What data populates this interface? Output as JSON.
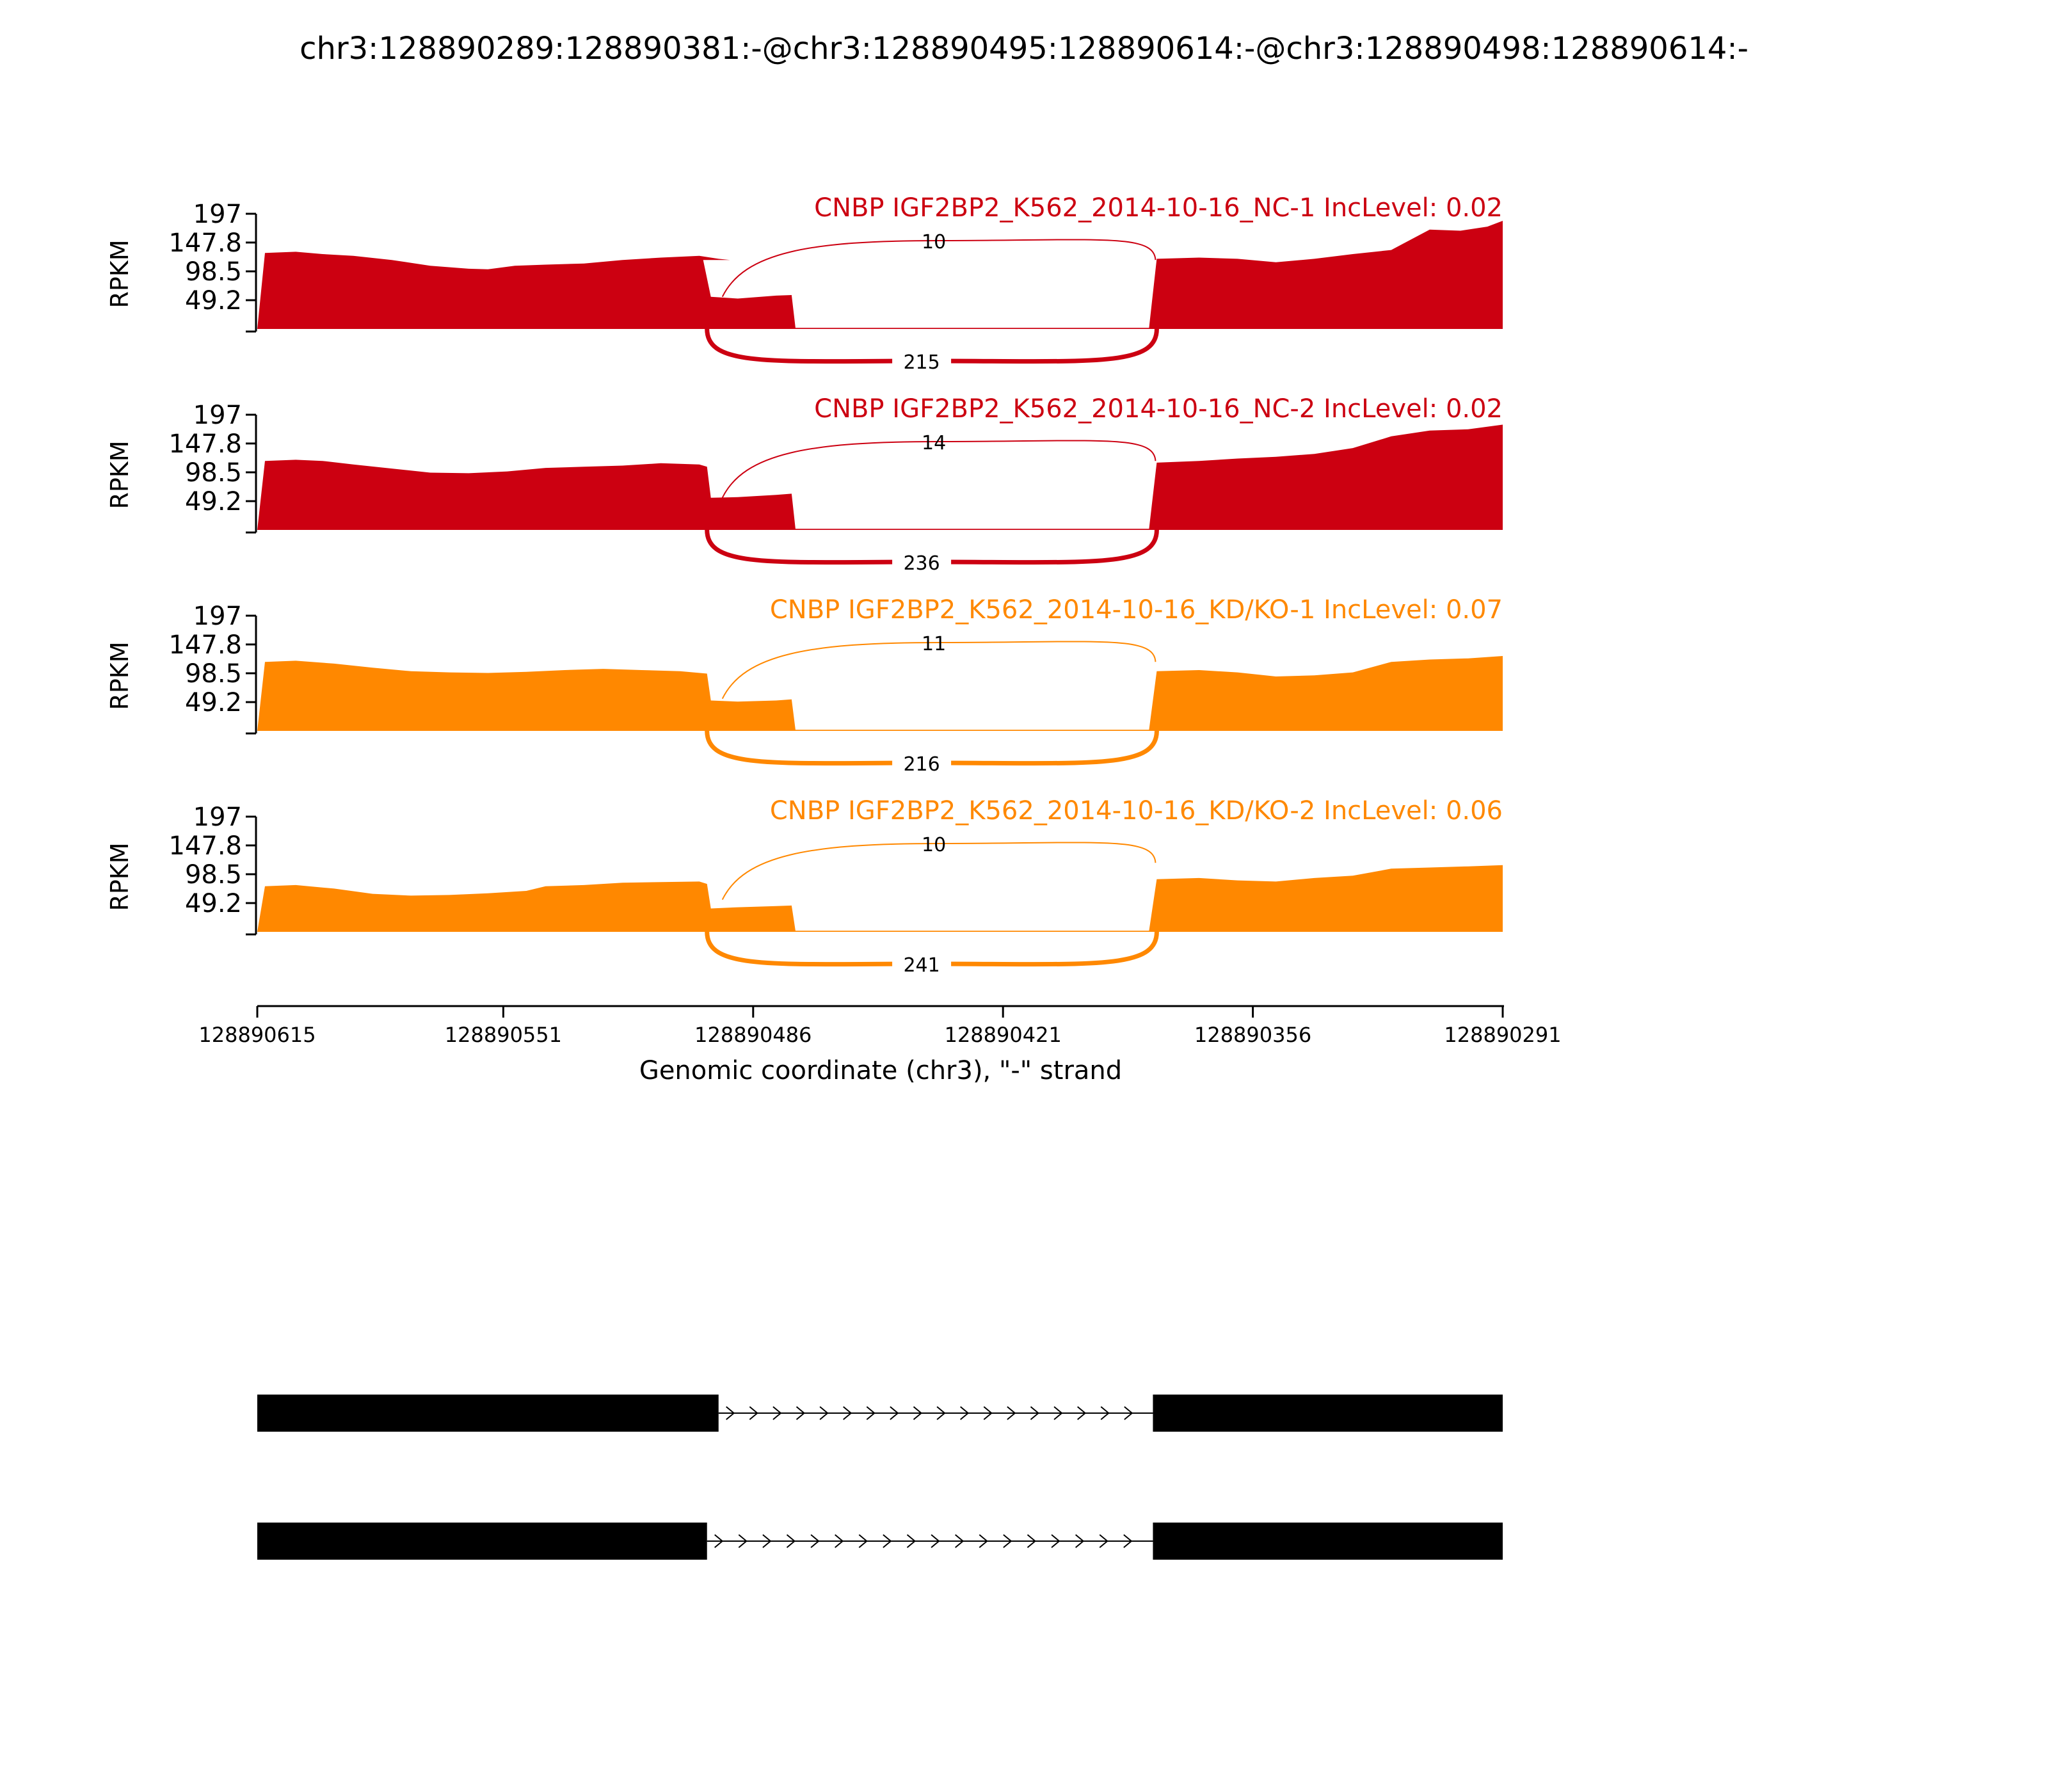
{
  "title": "chr3:128890289:128890381:-@chr3:128890495:128890614:-@chr3:128890498:128890614:-",
  "chart_data": {
    "type": "area",
    "title": "chr3:128890289:128890381:-@chr3:128890495:128890614:-@chr3:128890498:128890614:-",
    "xlabel": "Genomic coordinate (chr3), \"-\" strand",
    "ylabel": "RPKM",
    "x_ticks": [
      "128890615",
      "128890551",
      "128890486",
      "128890421",
      "128890356",
      "128890291"
    ],
    "y_ticks": [
      "197",
      "147.8",
      "98.5",
      "49.2"
    ],
    "ylim": [
      0,
      197
    ],
    "xlim": [
      128890615,
      128890291
    ],
    "grid": false,
    "exon_regions": [
      [
        128890615,
        128890498
      ],
      [
        128890498,
        128890475
      ],
      [
        128890381,
        128890291
      ]
    ],
    "panels": [
      {
        "name": "CNBP IGF2BP2_K562_2014-10-16_NC-1 IncLevel: 0.02",
        "color": "#cc0011",
        "inclusion_junction_count": "10",
        "skipping_junction_count": "215",
        "coverage": [
          [
            128890615,
            0
          ],
          [
            128890613,
            130
          ],
          [
            128890605,
            132
          ],
          [
            128890598,
            128
          ],
          [
            128890590,
            125
          ],
          [
            128890580,
            118
          ],
          [
            128890570,
            108
          ],
          [
            128890560,
            103
          ],
          [
            128890555,
            102
          ],
          [
            128890548,
            108
          ],
          [
            128890540,
            110
          ],
          [
            128890530,
            112
          ],
          [
            128890520,
            118
          ],
          [
            128890510,
            122
          ],
          [
            128890500,
            125
          ],
          [
            128890495,
            120
          ],
          [
            128890492,
            118
          ],
          [
            128890499,
            118
          ],
          [
            128890497,
            55
          ],
          [
            128890490,
            52
          ],
          [
            128890480,
            57
          ],
          [
            128890476,
            58
          ],
          [
            128890475,
            2
          ],
          [
            128890383,
            2
          ],
          [
            128890381,
            120
          ],
          [
            128890370,
            122
          ],
          [
            128890360,
            120
          ],
          [
            128890350,
            114
          ],
          [
            128890340,
            120
          ],
          [
            128890330,
            128
          ],
          [
            128890320,
            135
          ],
          [
            128890310,
            170
          ],
          [
            128890302,
            168
          ],
          [
            128890295,
            175
          ],
          [
            128890291,
            185
          ],
          [
            128890291,
            0
          ]
        ]
      },
      {
        "name": "CNBP IGF2BP2_K562_2014-10-16_NC-2 IncLevel: 0.02",
        "color": "#cc0011",
        "inclusion_junction_count": "14",
        "skipping_junction_count": "236",
        "coverage": [
          [
            128890615,
            0
          ],
          [
            128890613,
            118
          ],
          [
            128890605,
            120
          ],
          [
            128890598,
            118
          ],
          [
            128890590,
            112
          ],
          [
            128890580,
            105
          ],
          [
            128890570,
            98
          ],
          [
            128890560,
            97
          ],
          [
            128890550,
            100
          ],
          [
            128890540,
            106
          ],
          [
            128890530,
            108
          ],
          [
            128890520,
            110
          ],
          [
            128890510,
            114
          ],
          [
            128890500,
            112
          ],
          [
            128890498,
            108
          ],
          [
            128890497,
            55
          ],
          [
            128890490,
            56
          ],
          [
            128890480,
            60
          ],
          [
            128890476,
            62
          ],
          [
            128890475,
            2
          ],
          [
            128890383,
            2
          ],
          [
            128890381,
            115
          ],
          [
            128890370,
            118
          ],
          [
            128890360,
            122
          ],
          [
            128890350,
            125
          ],
          [
            128890340,
            130
          ],
          [
            128890330,
            140
          ],
          [
            128890320,
            160
          ],
          [
            128890310,
            170
          ],
          [
            128890300,
            172
          ],
          [
            128890291,
            180
          ],
          [
            128890291,
            0
          ]
        ]
      },
      {
        "name": "CNBP IGF2BP2_K562_2014-10-16_KD/KO-1 IncLevel: 0.07",
        "color": "#ff8800",
        "inclusion_junction_count": "11",
        "skipping_junction_count": "216",
        "coverage": [
          [
            128890615,
            0
          ],
          [
            128890613,
            118
          ],
          [
            128890605,
            120
          ],
          [
            128890595,
            115
          ],
          [
            128890585,
            108
          ],
          [
            128890575,
            102
          ],
          [
            128890565,
            100
          ],
          [
            128890555,
            99
          ],
          [
            128890545,
            101
          ],
          [
            128890535,
            104
          ],
          [
            128890525,
            106
          ],
          [
            128890515,
            104
          ],
          [
            128890505,
            102
          ],
          [
            128890498,
            98
          ],
          [
            128890497,
            52
          ],
          [
            128890490,
            50
          ],
          [
            128890480,
            52
          ],
          [
            128890476,
            54
          ],
          [
            128890475,
            2
          ],
          [
            128890383,
            2
          ],
          [
            128890381,
            102
          ],
          [
            128890370,
            104
          ],
          [
            128890360,
            100
          ],
          [
            128890350,
            93
          ],
          [
            128890340,
            95
          ],
          [
            128890330,
            100
          ],
          [
            128890320,
            118
          ],
          [
            128890310,
            122
          ],
          [
            128890300,
            124
          ],
          [
            128890291,
            128
          ],
          [
            128890291,
            0
          ]
        ]
      },
      {
        "name": "CNBP IGF2BP2_K562_2014-10-16_KD/KO-2 IncLevel: 0.06",
        "color": "#ff8800",
        "inclusion_junction_count": "10",
        "skipping_junction_count": "241",
        "coverage": [
          [
            128890615,
            0
          ],
          [
            128890613,
            78
          ],
          [
            128890605,
            80
          ],
          [
            128890595,
            74
          ],
          [
            128890585,
            65
          ],
          [
            128890575,
            62
          ],
          [
            128890565,
            63
          ],
          [
            128890555,
            66
          ],
          [
            128890545,
            70
          ],
          [
            128890540,
            78
          ],
          [
            128890530,
            80
          ],
          [
            128890520,
            84
          ],
          [
            128890510,
            85
          ],
          [
            128890500,
            86
          ],
          [
            128890498,
            82
          ],
          [
            128890497,
            40
          ],
          [
            128890490,
            42
          ],
          [
            128890480,
            44
          ],
          [
            128890476,
            45
          ],
          [
            128890475,
            2
          ],
          [
            128890383,
            2
          ],
          [
            128890381,
            90
          ],
          [
            128890370,
            92
          ],
          [
            128890360,
            88
          ],
          [
            128890350,
            86
          ],
          [
            128890340,
            92
          ],
          [
            128890330,
            96
          ],
          [
            128890320,
            108
          ],
          [
            128890310,
            110
          ],
          [
            128890300,
            112
          ],
          [
            128890291,
            114
          ],
          [
            128890291,
            0
          ]
        ]
      }
    ],
    "junctions": {
      "inclusion": [
        128890495,
        128890381
      ],
      "skipping": [
        128890498,
        128890381
      ]
    },
    "isoforms": [
      {
        "exons": [
          [
            128890615,
            128890495
          ],
          [
            128890382,
            128890291
          ]
        ]
      },
      {
        "exons": [
          [
            128890615,
            128890498
          ],
          [
            128890382,
            128890291
          ]
        ]
      }
    ]
  }
}
